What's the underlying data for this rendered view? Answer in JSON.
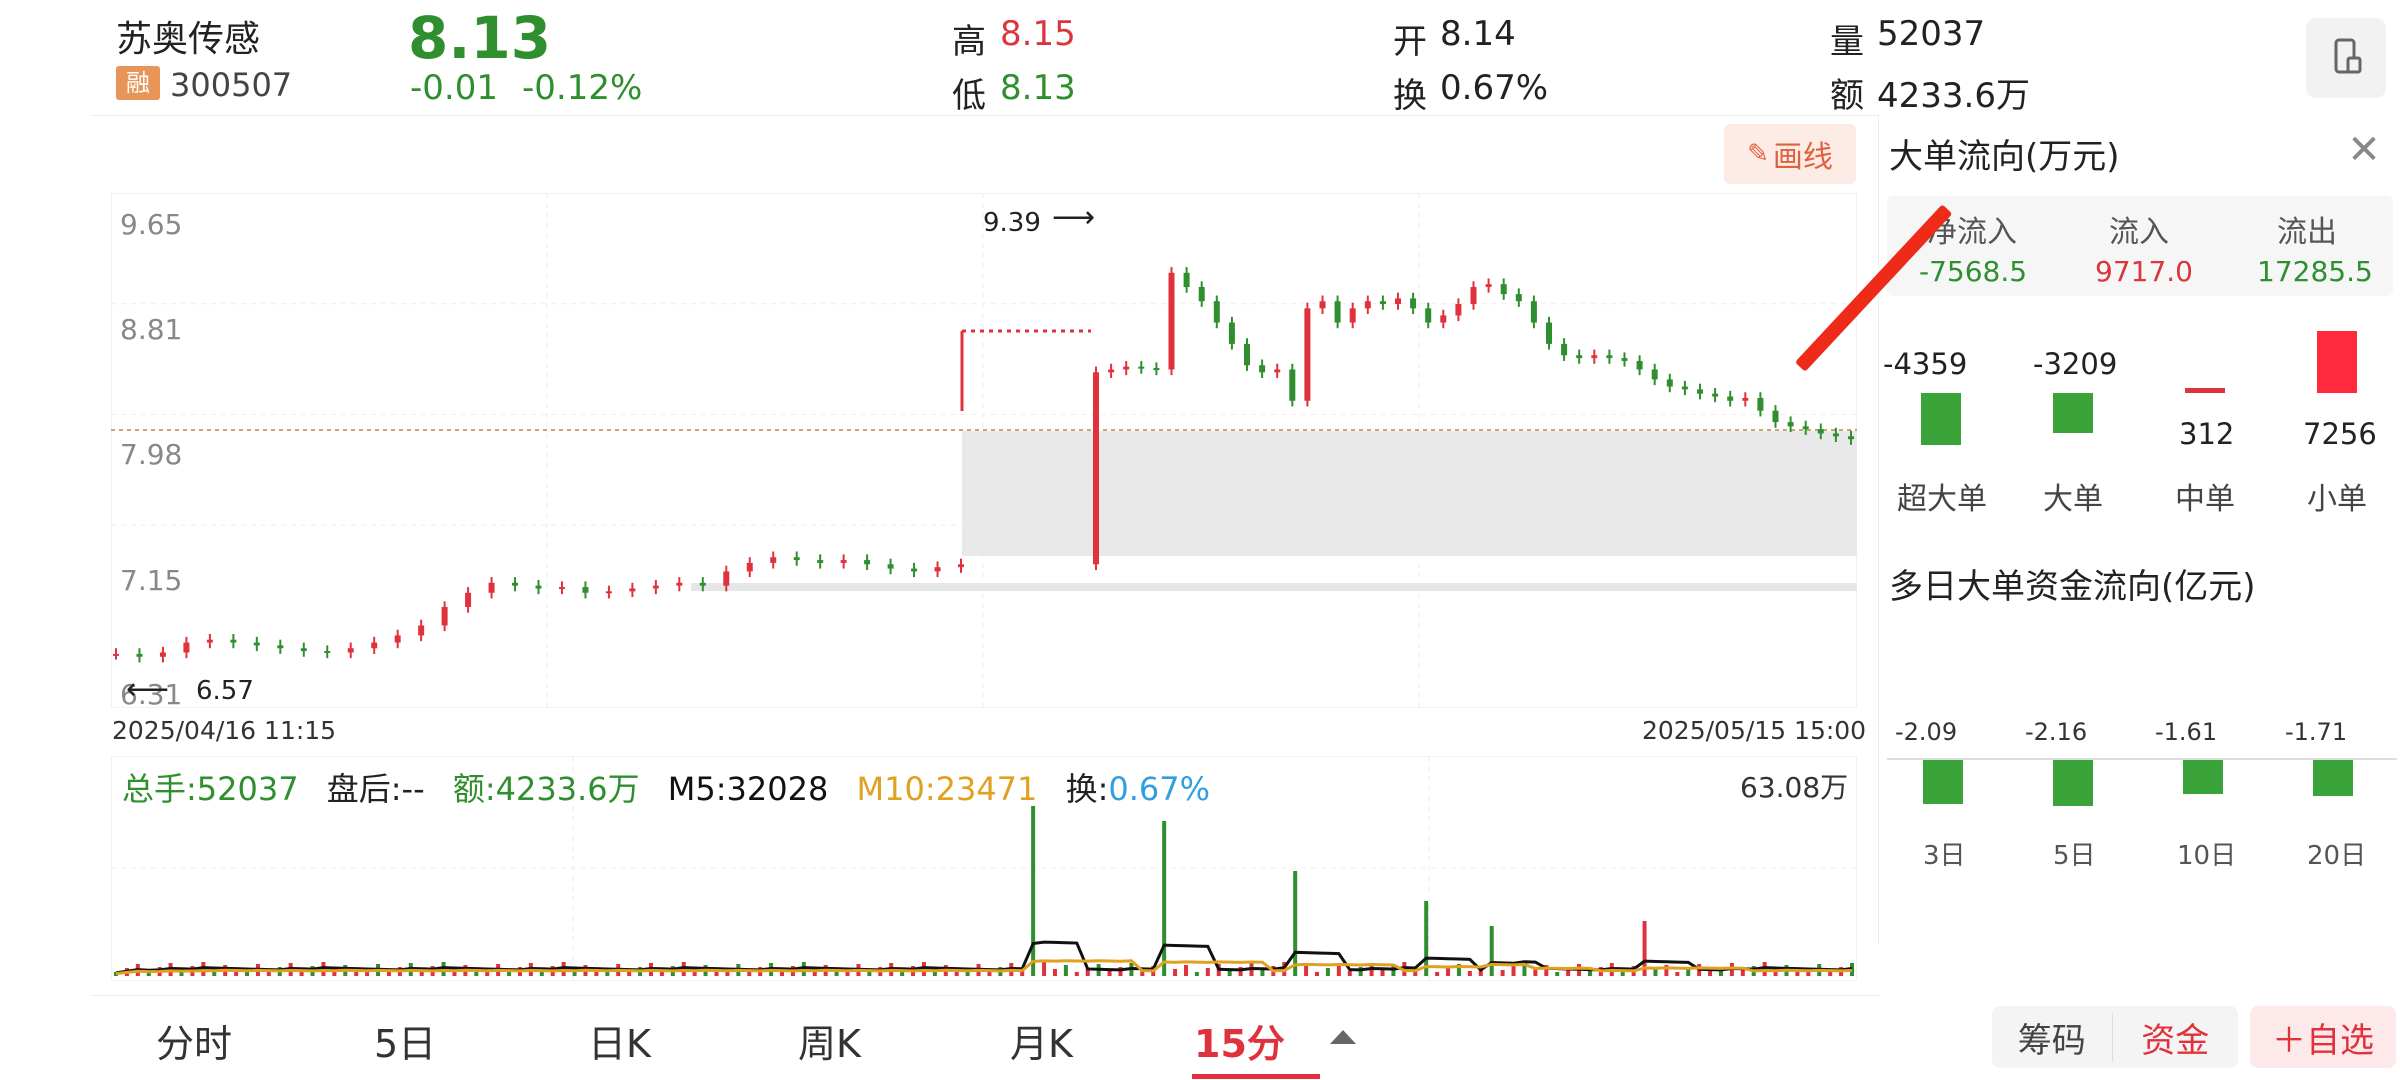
{
  "stock": {
    "name": "苏奥传感",
    "badge": "融",
    "code": "300507",
    "price": "8.13",
    "change": "-0.01",
    "change_pct": "-0.12%"
  },
  "quote": {
    "high_label": "高",
    "high": "8.15",
    "low_label": "低",
    "low": "8.13",
    "open_label": "开",
    "open": "8.14",
    "turnover_label": "换",
    "turnover": "0.67%",
    "volume_label": "量",
    "volume": "52037",
    "amount_label": "额",
    "amount": "4233.6万"
  },
  "draw_button": "画线",
  "chart": {
    "y_ticks": [
      "9.65",
      "8.81",
      "7.98",
      "7.15",
      "6.31"
    ],
    "high_marker": "9.39",
    "low_marker": "6.57",
    "start_time": "2025/04/16 11:15",
    "end_time": "2025/05/15 15:00"
  },
  "volume_bar": {
    "total": "总手:52037",
    "after_hours": "盘后:--",
    "amount": "额:4233.6万",
    "m5": "M5:32028",
    "m10": "M10:23471",
    "turnover_label": "换:",
    "turnover": "0.67%",
    "max": "63.08万"
  },
  "flow_panel": {
    "title": "大单流向(万元)",
    "net_in_label": "净流入",
    "net_in": "-7568.5",
    "in_label": "流入",
    "in": "9717.0",
    "out_label": "流出",
    "out": "17285.5",
    "bars": [
      {
        "label": "超大单",
        "value": "-4359"
      },
      {
        "label": "大单",
        "value": "-3209"
      },
      {
        "label": "中单",
        "value": "312"
      },
      {
        "label": "小单",
        "value": "7256"
      }
    ],
    "multi_title": "多日大单资金流向(亿元)",
    "multi": [
      {
        "label": "3日",
        "value": "-2.09"
      },
      {
        "label": "5日",
        "value": "-2.16"
      },
      {
        "label": "10日",
        "value": "-1.61"
      },
      {
        "label": "20日",
        "value": "-1.71"
      }
    ]
  },
  "tabs": [
    "分时",
    "5日",
    "日K",
    "周K",
    "月K",
    "15分"
  ],
  "active_tab": "15分",
  "bottom_buttons": {
    "chips": "筹码",
    "funds": "资金",
    "add_watch": "＋自选"
  },
  "colors": {
    "up": "#e0323c",
    "down": "#2f8f2f",
    "m5": "#111111",
    "m10": "#e0a020",
    "turnover": "#2f9fe0",
    "accent": "#e0323c"
  },
  "chart_data": {
    "type": "candlestick",
    "y_axis": [
      6.31,
      9.65
    ],
    "price_path": [
      6.62,
      6.6,
      6.63,
      6.7,
      6.72,
      6.7,
      6.68,
      6.66,
      6.64,
      6.63,
      6.66,
      6.7,
      6.75,
      6.82,
      6.95,
      7.05,
      7.12,
      7.1,
      7.08,
      7.09,
      7.05,
      7.06,
      7.08,
      7.1,
      7.12,
      7.1,
      7.2,
      7.26,
      7.3,
      7.28,
      7.26,
      7.28,
      7.25,
      7.22,
      7.2,
      7.23,
      7.25,
      8.6,
      8.62,
      8.64,
      8.63,
      8.62,
      9.3,
      9.2,
      9.1,
      8.95,
      8.8,
      8.65,
      8.6,
      8.62,
      8.4,
      9.05,
      9.1,
      8.95,
      9.05,
      9.1,
      9.08,
      9.12,
      9.05,
      8.95,
      9.0,
      9.08,
      9.2,
      9.22,
      9.15,
      9.1,
      8.95,
      8.8,
      8.72,
      8.7,
      8.72,
      8.7,
      8.68,
      8.62,
      8.55,
      8.5,
      8.48,
      8.45,
      8.43,
      8.4,
      8.42,
      8.33,
      8.25,
      8.22,
      8.2,
      8.17,
      8.15,
      8.13
    ]
  }
}
